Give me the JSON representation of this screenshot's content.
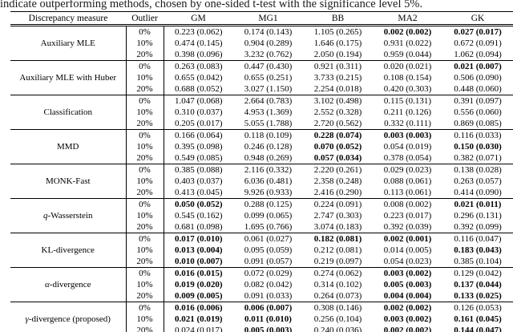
{
  "caption": "indicate outperforming methods, chosen by one-sided t-test with the significance level 5%.",
  "table": {
    "headers": [
      "Discrepancy measure",
      "Outlier",
      "GM",
      "MG1",
      "BB",
      "MA2",
      "GK"
    ],
    "groups": [
      {
        "measure_prefix": "",
        "measure_text": "Auxiliary MLE",
        "rows": [
          {
            "outlier": "0%",
            "cells": [
              "0.223 (0.062)",
              "0.174 (0.143)",
              "1.105 (0.265)",
              "0.002 (0.002)",
              "0.027 (0.017)"
            ],
            "bold": [
              0,
              0,
              0,
              1,
              1
            ]
          },
          {
            "outlier": "10%",
            "cells": [
              "0.474 (0.145)",
              "0.904 (0.289)",
              "1.646 (0.175)",
              "0.931 (0.022)",
              "0.672 (0.091)"
            ],
            "bold": [
              0,
              0,
              0,
              0,
              0
            ]
          },
          {
            "outlier": "20%",
            "cells": [
              "0.398 (0.096)",
              "3.232 (0.762)",
              "2.050 (0.194)",
              "0.959 (0.044)",
              "1.062 (0.094)"
            ],
            "bold": [
              0,
              0,
              0,
              0,
              0
            ]
          }
        ]
      },
      {
        "measure_prefix": "",
        "measure_text": "Auxiliary MLE with Huber",
        "rows": [
          {
            "outlier": "0%",
            "cells": [
              "0.263 (0.083)",
              "0.447 (0.430)",
              "0.921 (0.311)",
              "0.020 (0.021)",
              "0.021 (0.007)"
            ],
            "bold": [
              0,
              0,
              0,
              0,
              1
            ]
          },
          {
            "outlier": "10%",
            "cells": [
              "0.655 (0.042)",
              "0.655 (0.251)",
              "3.733 (0.215)",
              "0.108 (0.154)",
              "0.506 (0.090)"
            ],
            "bold": [
              0,
              0,
              0,
              0,
              0
            ]
          },
          {
            "outlier": "20%",
            "cells": [
              "0.688 (0.052)",
              "3.027 (1.150)",
              "2.254 (0.018)",
              "0.420 (0.303)",
              "0.448 (0.060)"
            ],
            "bold": [
              0,
              0,
              0,
              0,
              0
            ]
          }
        ]
      },
      {
        "measure_prefix": "",
        "measure_text": "Classification",
        "rows": [
          {
            "outlier": "0%",
            "cells": [
              "1.047 (0.068)",
              "2.664 (0.783)",
              "3.102 (0.498)",
              "0.115 (0.131)",
              "0.391 (0.097)"
            ],
            "bold": [
              0,
              0,
              0,
              0,
              0
            ]
          },
          {
            "outlier": "10%",
            "cells": [
              "0.310 (0.037)",
              "4.953 (1.369)",
              "2.552 (0.328)",
              "0.211 (0.126)",
              "0.556 (0.060)"
            ],
            "bold": [
              0,
              0,
              0,
              0,
              0
            ]
          },
          {
            "outlier": "20%",
            "cells": [
              "0.205 (0.017)",
              "5.055 (1.788)",
              "2.720 (0.562)",
              "0.332 (0.111)",
              "0.869 (0.085)"
            ],
            "bold": [
              0,
              0,
              0,
              0,
              0
            ]
          }
        ]
      },
      {
        "measure_prefix": "",
        "measure_text": "MMD",
        "rows": [
          {
            "outlier": "0%",
            "cells": [
              "0.166 (0.064)",
              "0.118 (0.109)",
              "0.228 (0.074)",
              "0.003 (0.003)",
              "0.116 (0.033)"
            ],
            "bold": [
              0,
              0,
              1,
              1,
              0
            ]
          },
          {
            "outlier": "10%",
            "cells": [
              "0.395 (0.098)",
              "0.246 (0.128)",
              "0.070 (0.052)",
              "0.054 (0.019)",
              "0.150 (0.030)"
            ],
            "bold": [
              0,
              0,
              1,
              0,
              1
            ]
          },
          {
            "outlier": "20%",
            "cells": [
              "0.549 (0.085)",
              "0.948 (0.269)",
              "0.057 (0.034)",
              "0.378 (0.054)",
              "0.382 (0.071)"
            ],
            "bold": [
              0,
              0,
              1,
              0,
              0
            ]
          }
        ]
      },
      {
        "measure_prefix": "",
        "measure_text": "MONK-Fast",
        "rows": [
          {
            "outlier": "0%",
            "cells": [
              "0.385 (0.088)",
              "2.116 (0.332)",
              "2.220 (0.261)",
              "0.029 (0.023)",
              "0.138 (0.028)"
            ],
            "bold": [
              0,
              0,
              0,
              0,
              0
            ]
          },
          {
            "outlier": "10%",
            "cells": [
              "0.403 (0.037)",
              "6.036 (0.481)",
              "2.358 (0.248)",
              "0.088 (0.061)",
              "0.263 (0.057)"
            ],
            "bold": [
              0,
              0,
              0,
              0,
              0
            ]
          },
          {
            "outlier": "20%",
            "cells": [
              "0.413 (0.045)",
              "9.926 (0.933)",
              "2.416 (0.290)",
              "0.113 (0.061)",
              "0.414 (0.090)"
            ],
            "bold": [
              0,
              0,
              0,
              0,
              0
            ]
          }
        ]
      },
      {
        "measure_prefix": "q",
        "measure_text": "-Wasserstein",
        "rows": [
          {
            "outlier": "0%",
            "cells": [
              "0.050 (0.052)",
              "0.288 (0.125)",
              "0.224 (0.091)",
              "0.008 (0.002)",
              "0.021 (0.011)"
            ],
            "bold": [
              1,
              0,
              0,
              0,
              1
            ]
          },
          {
            "outlier": "10%",
            "cells": [
              "0.545 (0.162)",
              "0.099 (0.065)",
              "2.747 (0.303)",
              "0.223 (0.017)",
              "0.296 (0.131)"
            ],
            "bold": [
              0,
              0,
              0,
              0,
              0
            ]
          },
          {
            "outlier": "20%",
            "cells": [
              "0.681 (0.098)",
              "1.695 (0.766)",
              "3.074 (0.183)",
              "0.392 (0.039)",
              "0.392 (0.099)"
            ],
            "bold": [
              0,
              0,
              0,
              0,
              0
            ]
          }
        ]
      },
      {
        "measure_prefix": "",
        "measure_text": "KL-divergence",
        "rows": [
          {
            "outlier": "0%",
            "cells": [
              "0.017 (0.010)",
              "0.061 (0.027)",
              "0.182 (0.081)",
              "0.002 (0.001)",
              "0.116 (0.047)"
            ],
            "bold": [
              1,
              0,
              1,
              1,
              0
            ]
          },
          {
            "outlier": "10%",
            "cells": [
              "0.013 (0.004)",
              "0.095 (0.059)",
              "0.212 (0.081)",
              "0.014 (0.005)",
              "0.183 (0.043)"
            ],
            "bold": [
              1,
              0,
              0,
              0,
              1
            ]
          },
          {
            "outlier": "20%",
            "cells": [
              "0.010 (0.007)",
              "0.091 (0.057)",
              "0.219 (0.097)",
              "0.054 (0.023)",
              "0.385 (0.104)"
            ],
            "bold": [
              1,
              0,
              0,
              0,
              0
            ]
          }
        ]
      },
      {
        "measure_prefix": "α",
        "measure_text": "-divergence",
        "rows": [
          {
            "outlier": "0%",
            "cells": [
              "0.016 (0.015)",
              "0.072 (0.029)",
              "0.274 (0.062)",
              "0.003 (0.002)",
              "0.129 (0.042)"
            ],
            "bold": [
              1,
              0,
              0,
              1,
              0
            ]
          },
          {
            "outlier": "10%",
            "cells": [
              "0.019 (0.020)",
              "0.082 (0.042)",
              "0.314 (0.102)",
              "0.005 (0.003)",
              "0.137 (0.044)"
            ],
            "bold": [
              1,
              0,
              0,
              1,
              1
            ]
          },
          {
            "outlier": "20%",
            "cells": [
              "0.009 (0.005)",
              "0.091 (0.033)",
              "0.264 (0.073)",
              "0.004 (0.004)",
              "0.133 (0.025)"
            ],
            "bold": [
              1,
              0,
              0,
              1,
              1
            ]
          }
        ]
      },
      {
        "measure_prefix": "γ",
        "measure_text": "-divergence (proposed)",
        "rows": [
          {
            "outlier": "0%",
            "cells": [
              "0.016 (0.006)",
              "0.006 (0.007)",
              "0.308 (0.146)",
              "0.002 (0.002)",
              "0.126 (0.053)"
            ],
            "bold": [
              1,
              1,
              0,
              1,
              0
            ]
          },
          {
            "outlier": "10%",
            "cells": [
              "0.021 (0.019)",
              "0.011 (0.010)",
              "0.256 (0.104)",
              "0.003 (0.002)",
              "0.161 (0.045)"
            ],
            "bold": [
              1,
              1,
              0,
              1,
              1
            ]
          },
          {
            "outlier": "20%",
            "cells": [
              "0.024 (0.017)",
              "0.005 (0.003)",
              "0.240 (0.036)",
              "0.002 (0.002)",
              "0.144 (0.047)"
            ],
            "bold": [
              0,
              1,
              0,
              1,
              1
            ]
          }
        ]
      }
    ]
  }
}
